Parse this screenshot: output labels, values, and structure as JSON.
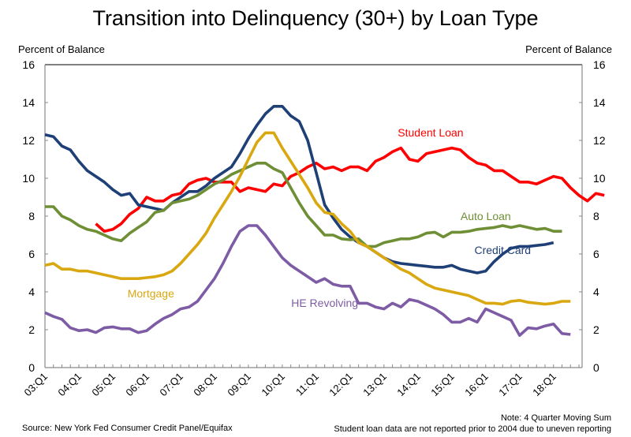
{
  "chart_data": {
    "type": "line",
    "title": "Transition into Delinquency (30+) by Loan Type",
    "ylabel_left": "Percent of Balance",
    "ylabel_right": "Percent of Balance",
    "ylim": [
      0,
      16
    ],
    "yticks": [
      0,
      2,
      4,
      6,
      8,
      10,
      12,
      14,
      16
    ],
    "x_start": "03:Q1",
    "x_end": "18:Q4",
    "xtick_labels": [
      "03:Q1",
      "04:Q1",
      "05:Q1",
      "06:Q1",
      "07:Q1",
      "08:Q1",
      "09:Q1",
      "10:Q1",
      "11:Q1",
      "12:Q1",
      "13:Q1",
      "14:Q1",
      "15:Q1",
      "16:Q1",
      "17:Q1",
      "18:Q1"
    ],
    "grid": false,
    "source": "Source: New York Fed Consumer Credit Panel/Equifax",
    "notes": [
      "Note: 4 Quarter Moving Sum",
      "Student loan data are not reported prior to 2004 due to uneven reporting"
    ],
    "series": [
      {
        "name": "Student Loan",
        "color": "#ff0000",
        "label_x_quarter": 45.5,
        "label_y_value": 12.2,
        "start_index": 6,
        "values": [
          7.6,
          7.2,
          7.3,
          7.6,
          8.1,
          8.4,
          9.0,
          8.8,
          8.8,
          9.1,
          9.2,
          9.7,
          9.9,
          10.0,
          9.8,
          9.8,
          9.8,
          9.3,
          9.5,
          9.4,
          9.3,
          9.7,
          9.6,
          10.1,
          10.3,
          10.6,
          10.8,
          10.5,
          10.6,
          10.4,
          10.6,
          10.6,
          10.4,
          10.9,
          11.1,
          11.4,
          11.6,
          11.0,
          10.9,
          11.3,
          11.4,
          11.5,
          11.6,
          11.5,
          11.1,
          10.8,
          10.7,
          10.4,
          10.4,
          10.1,
          9.8,
          9.8,
          9.7,
          9.9,
          10.1,
          10.0,
          9.5,
          9.1,
          8.8,
          9.2,
          9.1
        ]
      },
      {
        "name": "Credit Card",
        "color": "#1f3f77",
        "label_x_quarter": 54,
        "label_y_value": 6.0,
        "start_index": 0,
        "values": [
          12.3,
          12.2,
          11.7,
          11.5,
          10.9,
          10.4,
          10.1,
          9.8,
          9.4,
          9.1,
          9.2,
          8.6,
          8.5,
          8.4,
          8.3,
          8.7,
          9.0,
          9.3,
          9.3,
          9.6,
          10.0,
          10.3,
          10.6,
          11.3,
          12.1,
          12.8,
          13.4,
          13.8,
          13.8,
          13.3,
          13.0,
          12.0,
          10.3,
          8.6,
          7.9,
          7.3,
          6.9,
          6.6,
          6.4,
          6.1,
          5.8,
          5.6,
          5.5,
          5.45,
          5.4,
          5.35,
          5.3,
          5.3,
          5.4,
          5.2,
          5.1,
          5.0,
          5.1,
          5.6,
          6.0,
          6.3,
          6.4,
          6.4,
          6.45,
          6.5,
          6.6
        ]
      },
      {
        "name": "Auto Loan",
        "color": "#6e8f35",
        "label_x_quarter": 52,
        "label_y_value": 7.8,
        "start_index": 0,
        "values": [
          8.5,
          8.5,
          8.0,
          7.8,
          7.5,
          7.3,
          7.2,
          7.0,
          6.8,
          6.7,
          7.1,
          7.4,
          7.7,
          8.2,
          8.3,
          8.7,
          8.8,
          8.9,
          9.1,
          9.4,
          9.7,
          9.9,
          10.2,
          10.4,
          10.6,
          10.8,
          10.8,
          10.5,
          10.3,
          9.5,
          8.7,
          8.0,
          7.5,
          7.0,
          7.0,
          6.8,
          6.75,
          6.8,
          6.4,
          6.4,
          6.6,
          6.7,
          6.8,
          6.8,
          6.9,
          7.1,
          7.15,
          6.9,
          7.15,
          7.15,
          7.2,
          7.3,
          7.35,
          7.4,
          7.5,
          7.4,
          7.5,
          7.4,
          7.3,
          7.35,
          7.2,
          7.2
        ]
      },
      {
        "name": "Mortgage",
        "color": "#d9a811",
        "label_x_quarter": 12.5,
        "label_y_value": 3.7,
        "start_index": 0,
        "values": [
          5.4,
          5.5,
          5.2,
          5.2,
          5.1,
          5.1,
          5.0,
          4.9,
          4.8,
          4.7,
          4.7,
          4.7,
          4.75,
          4.8,
          4.9,
          5.1,
          5.5,
          6.0,
          6.5,
          7.1,
          7.9,
          8.6,
          9.3,
          10.1,
          11.0,
          11.9,
          12.4,
          12.4,
          11.6,
          10.9,
          10.2,
          9.5,
          8.7,
          8.2,
          8.1,
          7.6,
          7.2,
          6.6,
          6.4,
          6.1,
          5.8,
          5.5,
          5.2,
          5.0,
          4.7,
          4.4,
          4.2,
          4.1,
          4.0,
          3.9,
          3.8,
          3.6,
          3.4,
          3.4,
          3.35,
          3.5,
          3.55,
          3.45,
          3.4,
          3.35,
          3.4,
          3.5,
          3.5
        ]
      },
      {
        "name": "HE Revolving",
        "color": "#7d5ca5",
        "label_x_quarter": 33,
        "label_y_value": 3.2,
        "start_index": 0,
        "values": [
          2.9,
          2.7,
          2.55,
          2.1,
          1.95,
          2.0,
          1.85,
          2.1,
          2.15,
          2.05,
          2.05,
          1.85,
          1.95,
          2.3,
          2.6,
          2.8,
          3.1,
          3.2,
          3.5,
          4.1,
          4.7,
          5.5,
          6.4,
          7.2,
          7.5,
          7.5,
          7.0,
          6.4,
          5.8,
          5.4,
          5.1,
          4.8,
          4.5,
          4.7,
          4.4,
          4.3,
          4.3,
          3.4,
          3.4,
          3.2,
          3.1,
          3.4,
          3.2,
          3.6,
          3.5,
          3.3,
          3.1,
          2.8,
          2.4,
          2.4,
          2.6,
          2.4,
          3.1,
          2.9,
          2.7,
          2.5,
          1.7,
          2.1,
          2.05,
          2.2,
          2.3,
          1.8,
          1.75
        ]
      }
    ]
  }
}
